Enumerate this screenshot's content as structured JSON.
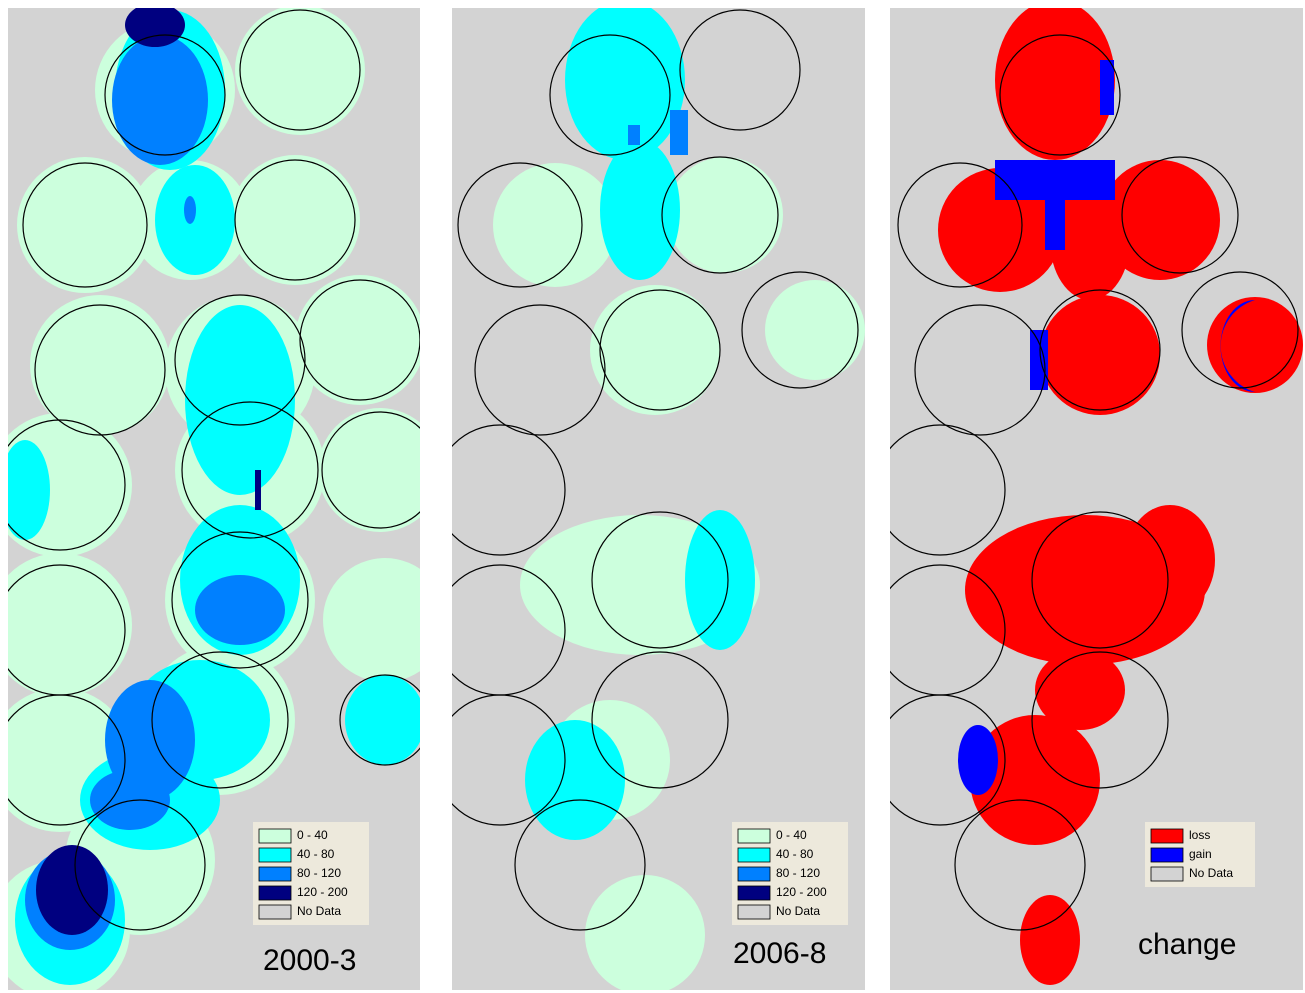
{
  "panels": [
    {
      "label": "2000-3",
      "legend": [
        {
          "label": "0 - 40",
          "color": "#ccffdd"
        },
        {
          "label": "40 - 80",
          "color": "#00ffff"
        },
        {
          "label": "80 - 120",
          "color": "#0080ff"
        },
        {
          "label": "120 - 200",
          "color": "#000080"
        },
        {
          "label": "No Data",
          "color": "#d3d3d3"
        }
      ]
    },
    {
      "label": "2006-8",
      "legend": [
        {
          "label": "0 - 40",
          "color": "#ccffdd"
        },
        {
          "label": "40 - 80",
          "color": "#00ffff"
        },
        {
          "label": "80 - 120",
          "color": "#0080ff"
        },
        {
          "label": "120 - 200",
          "color": "#000080"
        },
        {
          "label": "No Data",
          "color": "#d3d3d3"
        }
      ]
    },
    {
      "label": "change",
      "legend": [
        {
          "label": "loss",
          "color": "#ff0000"
        },
        {
          "label": "gain",
          "color": "#0000ff"
        },
        {
          "label": "No Data",
          "color": "#d3d3d3"
        }
      ]
    }
  ]
}
